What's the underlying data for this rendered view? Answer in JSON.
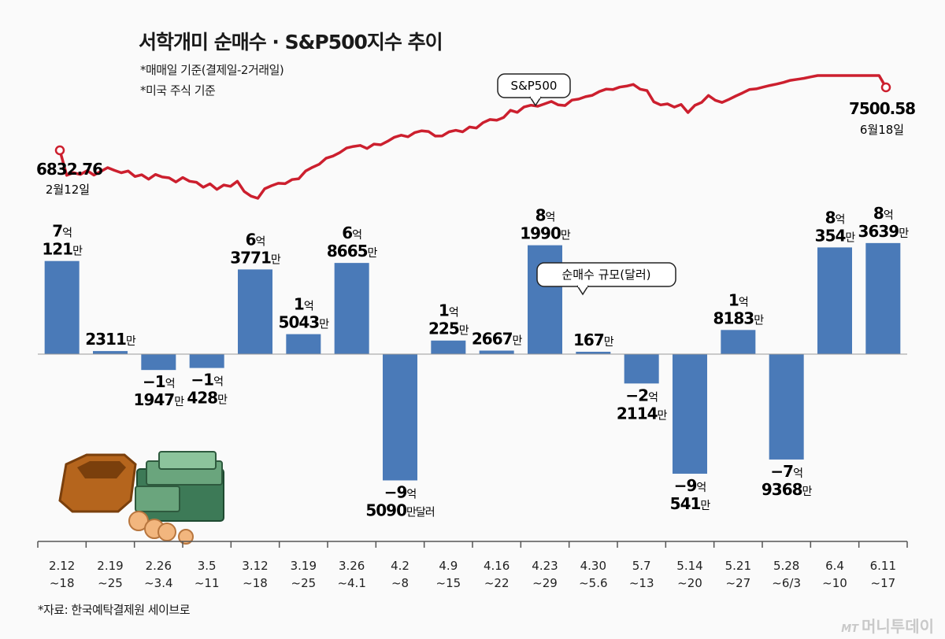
{
  "header": {
    "title": "서학개미 순매수 · S&P500지수 추이",
    "note1": "*매매일 기준(결제일-2거래일)",
    "note2": "*미국 주식 기준"
  },
  "footer": {
    "source": "*자료: 한국예탁결제원 세이브로",
    "brand_logo": "MT",
    "brand": "머니투데이"
  },
  "colors": {
    "bar": "#4a7ab8",
    "line": "#cc1f2e",
    "axis": "#555555"
  },
  "chart_data": [
    {
      "type": "bar",
      "title": "순매수 규모(달러)",
      "unit_label": "달러",
      "categories": [
        "2.12\n~18",
        "2.19\n~25",
        "2.26\n~3.4",
        "3.5\n~11",
        "3.12\n~18",
        "3.19\n~25",
        "3.26\n~4.1",
        "4.2\n~8",
        "4.9\n~15",
        "4.16\n~22",
        "4.23\n~29",
        "4.30\n~5.6",
        "5.7\n~13",
        "5.14\n~20",
        "5.21\n~27",
        "5.28\n~6/3",
        "6.4\n~10",
        "6.11\n~17"
      ],
      "values": [
        701210000,
        23110000,
        -119470000,
        -104280000,
        637710000,
        150430000,
        686650000,
        -950900000,
        102250000,
        26670000,
        819900000,
        1670000,
        -221140000,
        -900541000,
        181830000,
        -793680000,
        803540000,
        836390000
      ],
      "labels": [
        {
          "line1": "7억",
          "line2": "121만"
        },
        {
          "line1": "",
          "line2": "2311만"
        },
        {
          "line1": "−1억",
          "line2": "1947만"
        },
        {
          "line1": "−1억",
          "line2": "428만"
        },
        {
          "line1": "6억",
          "line2": "3771만"
        },
        {
          "line1": "1억",
          "line2": "5043만"
        },
        {
          "line1": "6억",
          "line2": "8665만"
        },
        {
          "line1": "−9억",
          "line2": "5090만달러"
        },
        {
          "line1": "1억",
          "line2": "225만"
        },
        {
          "line1": "",
          "line2": "2667만"
        },
        {
          "line1": "8억",
          "line2": "1990만"
        },
        {
          "line1": "",
          "line2": "167만"
        },
        {
          "line1": "−2억",
          "line2": "2114만"
        },
        {
          "line1": "−9억",
          "line2": "541만"
        },
        {
          "line1": "1억",
          "line2": "8183만"
        },
        {
          "line1": "−7억",
          "line2": "9368만"
        },
        {
          "line1": "8억",
          "line2": "354만"
        },
        {
          "line1": "8억",
          "line2": "3639만"
        }
      ]
    },
    {
      "type": "line",
      "title": "S&P500",
      "start": {
        "value": "6832.76",
        "date": "2월12일"
      },
      "end": {
        "value": "7500.58",
        "date": "6월18일"
      },
      "values": [
        6832.76,
        6835,
        6850,
        6840,
        6862,
        6836,
        6858,
        6880,
        6864,
        6850,
        6860,
        6828,
        6838,
        6812,
        6840,
        6825,
        6820,
        6796,
        6822,
        6800,
        6794,
        6765,
        6785,
        6752,
        6778,
        6770,
        6800,
        6740,
        6713,
        6700,
        6756,
        6774,
        6788,
        6786,
        6810,
        6815,
        6860,
        6882,
        6900,
        6935,
        6948,
        6968,
        6995,
        7004,
        7010,
        6992,
        7018,
        7014,
        7034,
        7058,
        7070,
        7061,
        7086,
        7096,
        7092,
        7065,
        7066,
        7090,
        7099,
        7090,
        7118,
        7112,
        7144,
        7162,
        7158,
        7174,
        7216,
        7204,
        7236,
        7246,
        7240,
        7254,
        7268,
        7248,
        7244,
        7276,
        7282,
        7296,
        7304,
        7326,
        7340,
        7338,
        7352,
        7358,
        7368,
        7340,
        7332,
        7266,
        7248,
        7254,
        7235,
        7250,
        7203,
        7245,
        7262,
        7303,
        7275,
        7262,
        7280,
        7300,
        7318,
        7338,
        7342,
        7352,
        7362,
        7370,
        7380,
        7392,
        7398,
        7404,
        7412,
        7422,
        7430,
        7436,
        7442,
        7450,
        7458,
        7466,
        7475,
        7482,
        7490,
        7500.58
      ]
    }
  ]
}
